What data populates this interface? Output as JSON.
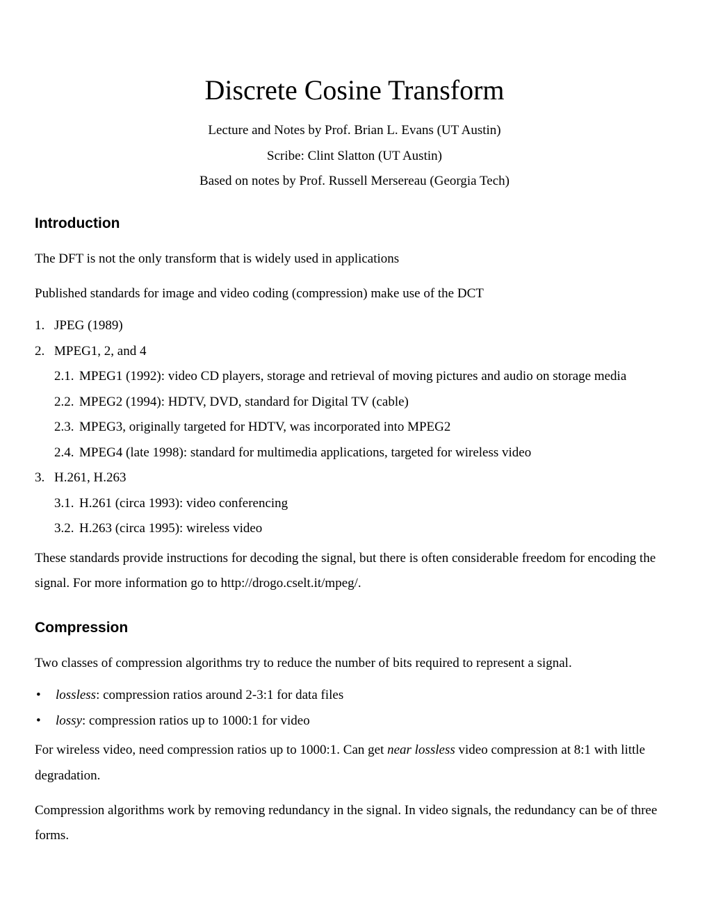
{
  "title": "Discrete Cosine Transform",
  "subtitles": [
    "Lecture and Notes by Prof. Brian L. Evans (UT Austin)",
    "Scribe: Clint Slatton (UT Austin)",
    "Based on notes by Prof. Russell Mersereau (Georgia Tech)"
  ],
  "sections": {
    "introduction": {
      "heading": "Introduction",
      "p1": "The DFT is not the only transform that is widely used in applications",
      "p2": "Published standards for image and video coding (compression) make use of the DCT",
      "list": {
        "item1": {
          "num": "1.",
          "text": "JPEG (1989)"
        },
        "item2": {
          "num": "2.",
          "text": "MPEG1, 2, and 4",
          "sub": [
            {
              "num": "2.1.",
              "text": "MPEG1 (1992): video CD players, storage and retrieval of moving pictures and audio on storage media"
            },
            {
              "num": "2.2.",
              "text": "MPEG2 (1994): HDTV, DVD, standard for Digital TV (cable)"
            },
            {
              "num": "2.3.",
              "text": "MPEG3, originally targeted for HDTV, was incorporated into MPEG2"
            },
            {
              "num": "2.4.",
              "text": "MPEG4 (late 1998): standard for multimedia applications, targeted for wireless video"
            }
          ]
        },
        "item3": {
          "num": "3.",
          "text": "H.261, H.263",
          "sub": [
            {
              "num": "3.1.",
              "text": "H.261 (circa 1993): video conferencing"
            },
            {
              "num": "3.2.",
              "text": "H.263 (circa 1995): wireless video"
            }
          ]
        }
      },
      "p3": "These standards provide instructions for decoding the signal, but there is often considerable freedom for encoding the signal.  For more information go to http://drogo.cselt.it/mpeg/."
    },
    "compression": {
      "heading": "Compression",
      "p1": "Two classes of compression algorithms try to reduce the number of bits required to represent a signal.",
      "bullets": [
        {
          "term": "lossless",
          "text": ": compression ratios around 2-3:1 for data files"
        },
        {
          "term": "lossy",
          "text": ": compression ratios up to 1000:1 for video"
        }
      ],
      "p2_pre": "For wireless video, need compression ratios up to 1000:1.  Can get ",
      "p2_italic": "near lossless",
      "p2_post": " video compression at 8:1 with little degradation.",
      "p3": "Compression algorithms work by removing redundancy in the signal.  In video signals, the redundancy can be of three forms."
    }
  }
}
